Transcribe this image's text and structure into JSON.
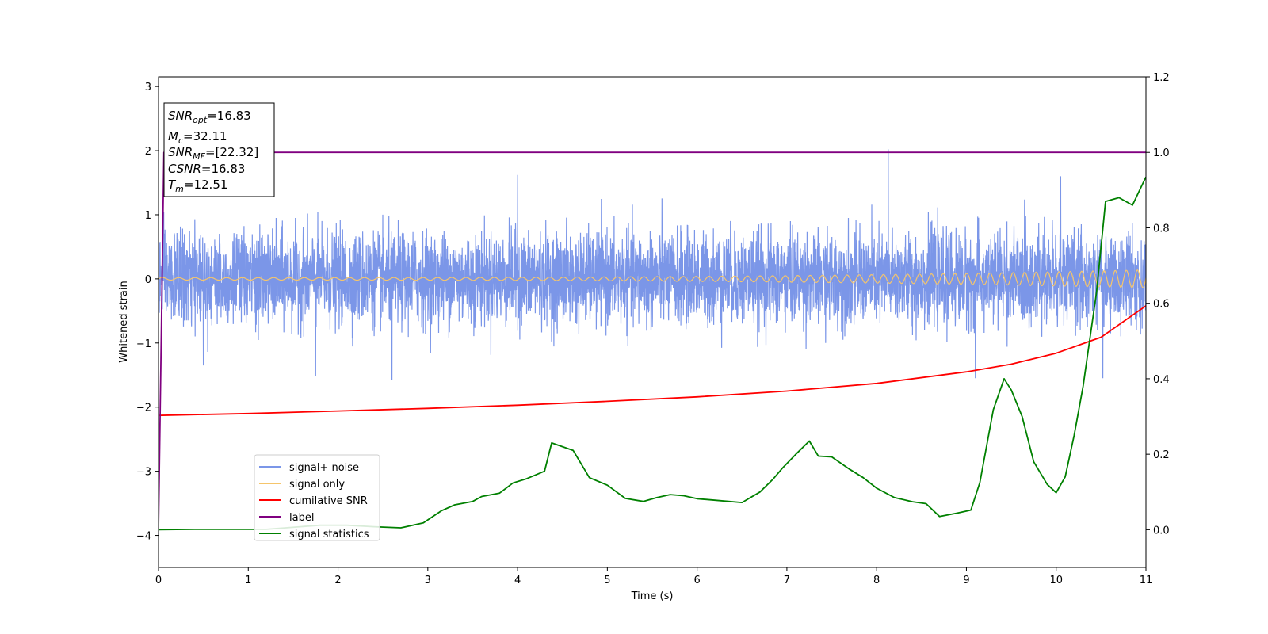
{
  "chart_data": {
    "type": "line",
    "xlabel": "Time (s)",
    "ylabel": "Whitened strain",
    "xlim": [
      0,
      11
    ],
    "ylim_left": [
      -4.5,
      3.15
    ],
    "ylim_right": [
      -0.1,
      1.2
    ],
    "x_ticks": [
      0,
      1,
      2,
      3,
      4,
      5,
      6,
      7,
      8,
      9,
      10,
      11
    ],
    "y_ticks_left": [
      -4,
      -3,
      -2,
      -1,
      0,
      1,
      2,
      3
    ],
    "y_ticks_right": [
      0.0,
      0.2,
      0.4,
      0.6,
      0.8,
      1.0,
      1.2
    ],
    "grid": false,
    "legend_position": "lower-left",
    "info_box": {
      "snr_opt": {
        "main": "SNR",
        "sub": "opt",
        "rest": "=16.83"
      },
      "mc": {
        "main": "M",
        "sub": "c",
        "rest": "=32.11"
      },
      "snr_mf": {
        "main": "SNR",
        "sub": "MF",
        "rest": "=[22.32]"
      },
      "csnr": {
        "main": "CSNR",
        "rest": "=16.83"
      },
      "tm": {
        "main": "T",
        "sub": "m",
        "rest": "=12.51"
      }
    },
    "series": [
      {
        "name": "signal+ noise",
        "color": "#7b96e8",
        "axis": "left",
        "noise_amplitude_std": 0.35,
        "notable_spikes": [
          [
            0.5,
            -1.35
          ],
          [
            1.75,
            -1.52
          ],
          [
            2.6,
            -1.58
          ],
          [
            4.0,
            1.62
          ],
          [
            8.13,
            2.02
          ],
          [
            9.1,
            -1.55
          ],
          [
            10.05,
            1.6
          ],
          [
            10.52,
            -1.55
          ]
        ]
      },
      {
        "name": "signal only",
        "color": "#f5c56b",
        "axis": "left",
        "amplitude_start": 0.02,
        "amplitude_end": 0.14
      },
      {
        "name": "cumilative SNR",
        "color": "#ff0000",
        "axis": "left",
        "x": [
          0,
          1,
          2,
          3,
          4,
          5,
          6,
          7,
          8,
          9,
          9.5,
          10,
          10.5,
          11
        ],
        "y": [
          -2.13,
          -2.1,
          -2.06,
          -2.02,
          -1.97,
          -1.91,
          -1.84,
          -1.75,
          -1.63,
          -1.45,
          -1.33,
          -1.16,
          -0.91,
          -0.42
        ]
      },
      {
        "name": "label",
        "color": "#800080",
        "axis": "right",
        "x": [
          0,
          0.06,
          11
        ],
        "y": [
          0.0,
          1.0,
          1.0
        ]
      },
      {
        "name": "signal statistics",
        "color": "#008000",
        "axis": "right",
        "x": [
          0,
          0.4,
          1.2,
          1.8,
          2.1,
          2.4,
          2.7,
          2.95,
          3.15,
          3.3,
          3.5,
          3.6,
          3.8,
          3.95,
          4.1,
          4.3,
          4.38,
          4.5,
          4.62,
          4.8,
          5.0,
          5.2,
          5.4,
          5.55,
          5.7,
          5.85,
          6.0,
          6.2,
          6.5,
          6.7,
          6.85,
          6.95,
          7.1,
          7.25,
          7.35,
          7.5,
          7.7,
          7.85,
          8.0,
          8.2,
          8.4,
          8.55,
          8.7,
          8.9,
          9.05,
          9.15,
          9.3,
          9.42,
          9.5,
          9.62,
          9.75,
          9.9,
          10.0,
          10.1,
          10.2,
          10.3,
          10.45,
          10.55,
          10.7,
          10.85,
          11.0
        ],
        "y": [
          0.0,
          0.001,
          0.001,
          0.012,
          0.012,
          0.008,
          0.005,
          0.018,
          0.05,
          0.066,
          0.075,
          0.088,
          0.097,
          0.124,
          0.135,
          0.155,
          0.23,
          0.22,
          0.21,
          0.138,
          0.118,
          0.083,
          0.075,
          0.085,
          0.093,
          0.09,
          0.082,
          0.078,
          0.072,
          0.1,
          0.135,
          0.163,
          0.2,
          0.235,
          0.195,
          0.193,
          0.16,
          0.138,
          0.11,
          0.085,
          0.074,
          0.069,
          0.035,
          0.044,
          0.052,
          0.125,
          0.318,
          0.4,
          0.37,
          0.3,
          0.18,
          0.12,
          0.098,
          0.14,
          0.25,
          0.38,
          0.63,
          0.87,
          0.88,
          0.86,
          0.935
        ]
      }
    ]
  }
}
